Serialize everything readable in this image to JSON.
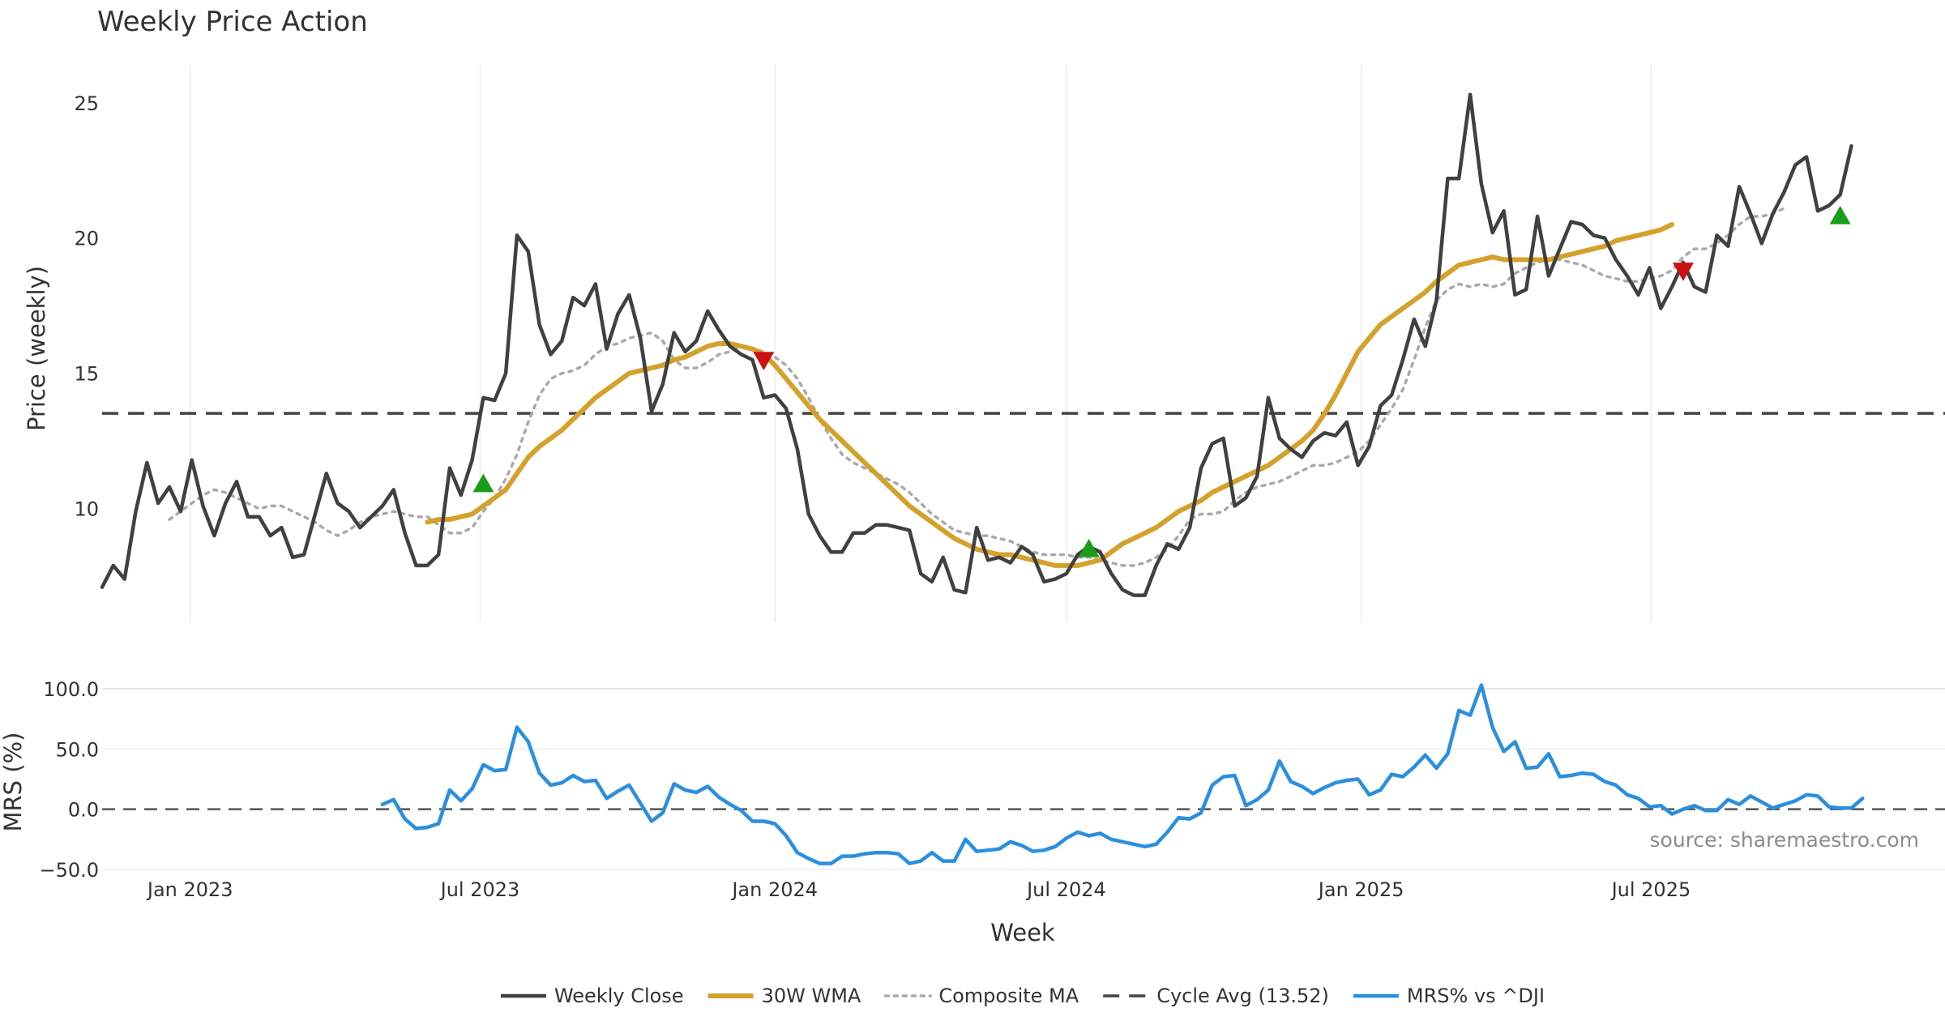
{
  "chart_data": [
    {
      "type": "line",
      "title": "Weekly Price Action",
      "ylabel": "Price (weekly)",
      "xlabel": "Week",
      "ylim": [
        5.8,
        26.4
      ],
      "yticks": [
        10,
        15,
        20,
        25
      ],
      "xlim": [
        "2022-11-07",
        "2025-11-24"
      ],
      "xticks": [
        "2023-01-01",
        "2023-07-01",
        "2024-01-01",
        "2024-07-01",
        "2025-01-01",
        "2025-07-01"
      ],
      "xtick_labels": [
        "Jan 2023",
        "Jul 2023",
        "Jan 2024",
        "Jul 2024",
        "Jan 2025",
        "Jul 2025"
      ],
      "grid": true,
      "week_start": "2022-11-07",
      "series": [
        {
          "name": "Weekly Close",
          "color": "#404040",
          "values": [
            7.1,
            7.9,
            7.4,
            9.9,
            11.7,
            10.2,
            10.8,
            9.9,
            11.8,
            10.1,
            9.0,
            10.2,
            11.0,
            9.7,
            9.7,
            9.0,
            9.3,
            8.2,
            8.3,
            9.8,
            11.3,
            10.2,
            9.9,
            9.3,
            9.7,
            10.1,
            10.7,
            9.1,
            7.9,
            7.9,
            8.3,
            11.5,
            10.5,
            11.8,
            14.1,
            14.0,
            15.0,
            20.1,
            19.5,
            16.8,
            15.7,
            16.2,
            17.8,
            17.5,
            18.3,
            15.9,
            17.2,
            17.9,
            16.3,
            13.6,
            14.6,
            16.5,
            15.8,
            16.2,
            17.3,
            16.6,
            16.0,
            15.7,
            15.5,
            14.1,
            14.2,
            13.7,
            12.2,
            9.8,
            9.0,
            8.4,
            8.4,
            9.1,
            9.1,
            9.4,
            9.4,
            9.3,
            9.2,
            7.6,
            7.3,
            8.2,
            7.0,
            6.9,
            9.3,
            8.1,
            8.2,
            8.0,
            8.6,
            8.3,
            7.3,
            7.4,
            7.6,
            8.3,
            8.6,
            8.4,
            7.6,
            7.0,
            6.8,
            6.8,
            7.9,
            8.7,
            8.5,
            9.3,
            11.5,
            12.4,
            12.6,
            10.1,
            10.4,
            11.2,
            14.1,
            12.6,
            12.2,
            11.9,
            12.5,
            12.8,
            12.7,
            13.2,
            11.6,
            12.3,
            13.8,
            14.2,
            15.5,
            17.0,
            16.0,
            17.7,
            22.2,
            22.2,
            25.3,
            22.0,
            20.2,
            21.0,
            17.9,
            18.1,
            20.8,
            18.6,
            19.6,
            20.6,
            20.5,
            20.1,
            20.0,
            19.2,
            18.6,
            17.9,
            18.9,
            17.4,
            18.2,
            19.1,
            18.2,
            18.0,
            20.1,
            19.7,
            21.9,
            20.9,
            19.8,
            20.9,
            21.7,
            22.7,
            23.0,
            21.0,
            21.2,
            21.6,
            23.4
          ]
        },
        {
          "name": "30W WMA",
          "color": "#d4a12a",
          "start_week": 29,
          "values": [
            9.5,
            9.6,
            9.6,
            9.7,
            9.8,
            10.1,
            10.4,
            10.7,
            11.3,
            11.9,
            12.3,
            12.6,
            12.9,
            13.3,
            13.7,
            14.1,
            14.4,
            14.7,
            15.0,
            15.1,
            15.2,
            15.3,
            15.5,
            15.6,
            15.8,
            16.0,
            16.1,
            16.1,
            16.0,
            15.9,
            15.7,
            15.3,
            14.8,
            14.3,
            13.8,
            13.3,
            12.9,
            12.5,
            12.1,
            11.7,
            11.3,
            10.9,
            10.5,
            10.1,
            9.8,
            9.5,
            9.2,
            8.9,
            8.7,
            8.5,
            8.4,
            8.3,
            8.3,
            8.2,
            8.1,
            8.0,
            7.9,
            7.9,
            7.9,
            8.0,
            8.1,
            8.4,
            8.7,
            8.9,
            9.1,
            9.3,
            9.6,
            9.9,
            10.1,
            10.3,
            10.6,
            10.8,
            11.0,
            11.2,
            11.4,
            11.6,
            11.9,
            12.2,
            12.5,
            12.9,
            13.5,
            14.2,
            15.0,
            15.8,
            16.3,
            16.8,
            17.1,
            17.4,
            17.7,
            18.0,
            18.4,
            18.7,
            19.0,
            19.1,
            19.2,
            19.3,
            19.2,
            19.2,
            19.2,
            19.2,
            19.2,
            19.3,
            19.4,
            19.5,
            19.6,
            19.7,
            19.9,
            20.0,
            20.1,
            20.2,
            20.3,
            20.5
          ]
        },
        {
          "name": "Composite MA",
          "color": "#aaaaaa",
          "start_week": 6,
          "values": [
            9.6,
            9.9,
            10.2,
            10.5,
            10.7,
            10.6,
            10.4,
            10.2,
            10.0,
            10.1,
            10.1,
            9.9,
            9.7,
            9.5,
            9.2,
            9.0,
            9.2,
            9.5,
            9.7,
            9.8,
            9.9,
            9.8,
            9.7,
            9.7,
            9.4,
            9.1,
            9.1,
            9.3,
            9.9,
            10.4,
            11.1,
            12.0,
            13.2,
            14.2,
            14.8,
            15.0,
            15.1,
            15.3,
            15.7,
            16.0,
            16.1,
            16.3,
            16.4,
            16.5,
            16.2,
            15.5,
            15.2,
            15.2,
            15.4,
            15.7,
            15.8,
            16.0,
            15.9,
            15.8,
            15.6,
            15.3,
            14.8,
            14.1,
            13.3,
            12.6,
            12.0,
            11.7,
            11.5,
            11.3,
            11.1,
            10.9,
            10.6,
            10.2,
            9.8,
            9.5,
            9.2,
            9.1,
            9.0,
            9.0,
            8.9,
            8.8,
            8.6,
            8.4,
            8.3,
            8.3,
            8.3,
            8.2,
            8.2,
            8.1,
            8.0,
            7.9,
            7.9,
            8.0,
            8.2,
            8.5,
            9.0,
            9.6,
            9.8,
            9.8,
            9.9,
            10.3,
            10.6,
            10.8,
            10.9,
            11.0,
            11.2,
            11.4,
            11.6,
            11.6,
            11.7,
            11.9,
            12.1,
            12.5,
            13.1,
            13.7,
            14.4,
            15.5,
            16.7,
            17.7,
            18.1,
            18.3,
            18.2,
            18.3,
            18.2,
            18.3,
            18.7,
            18.9,
            19.1,
            19.2,
            19.2,
            19.1,
            19.0,
            18.8,
            18.6,
            18.5,
            18.4,
            18.4,
            18.5,
            18.6,
            18.8,
            19.3,
            19.6,
            19.6,
            19.8,
            20.1,
            20.5,
            20.8,
            20.8,
            20.9,
            21.1
          ]
        }
      ],
      "reference_lines": [
        {
          "name": "Cycle Avg (13.52)",
          "value": 13.52,
          "color": "#444444",
          "style": "dashed"
        }
      ],
      "markers": [
        {
          "type": "buy",
          "week": 34,
          "value": 10.9,
          "color": "#1a9e1a"
        },
        {
          "type": "sell",
          "week": 59,
          "value": 15.5,
          "color": "#cc1111"
        },
        {
          "type": "buy",
          "week": 88,
          "value": 8.5,
          "color": "#1a9e1a"
        },
        {
          "type": "sell",
          "week": 141,
          "value": 18.8,
          "color": "#cc1111"
        },
        {
          "type": "buy",
          "week": 155,
          "value": 20.8,
          "color": "#1a9e1a"
        }
      ]
    },
    {
      "type": "line",
      "ylabel": "MRS (%)",
      "ylim": [
        -50,
        100
      ],
      "yticks": [
        100,
        50,
        0,
        -50
      ],
      "ytick_labels": [
        "100.0",
        "50.0",
        "0.0",
        "−50.0"
      ],
      "grid": true,
      "reference_lines": [
        {
          "value": 0,
          "color": "#555555",
          "style": "dashed"
        }
      ],
      "series": [
        {
          "name": "MRS% vs ^DJI",
          "color": "#2b8fe0",
          "start_week": 25,
          "values": [
            4,
            8,
            -8,
            -16,
            -15,
            -12,
            16,
            7,
            17,
            37,
            32,
            33,
            68,
            56,
            30,
            20,
            22,
            28,
            23,
            24,
            9,
            15,
            20,
            5,
            -10,
            -3,
            21,
            16,
            14,
            19,
            10,
            4,
            -1,
            -10,
            -10,
            -12,
            -22,
            -36,
            -41,
            -45,
            -45,
            -39,
            -39,
            -37,
            -36,
            -36,
            -37,
            -45,
            -43,
            -36,
            -43,
            -43,
            -25,
            -35,
            -34,
            -33,
            -27,
            -30,
            -35,
            -34,
            -31,
            -24,
            -19,
            -22,
            -20,
            -25,
            -27,
            -29,
            -31,
            -29,
            -19,
            -7,
            -8,
            -3,
            20,
            27,
            28,
            3,
            8,
            16,
            40,
            23,
            19,
            13,
            18,
            22,
            24,
            25,
            12,
            16,
            29,
            27,
            35,
            45,
            34,
            46,
            82,
            78,
            103,
            68,
            48,
            56,
            34,
            35,
            46,
            27,
            28,
            30,
            29,
            23,
            20,
            12,
            9,
            2,
            3,
            -4,
            0,
            3,
            -1,
            -1,
            8,
            4,
            11,
            6,
            1,
            4,
            7,
            12,
            11,
            2,
            1,
            1,
            9
          ]
        }
      ],
      "annotations": [
        "source: sharemaestro.com"
      ]
    }
  ],
  "legend": {
    "position": "bottom-center",
    "items": [
      {
        "label": "Weekly Close",
        "color": "#404040",
        "style": "solid"
      },
      {
        "label": "30W WMA",
        "color": "#d4a12a",
        "style": "solid"
      },
      {
        "label": "Composite MA",
        "color": "#aaaaaa",
        "style": "dotted"
      },
      {
        "label": "Cycle Avg (13.52)",
        "color": "#444444",
        "style": "dashed"
      },
      {
        "label": "MRS% vs ^DJI",
        "color": "#2b8fe0",
        "style": "solid"
      }
    ]
  }
}
